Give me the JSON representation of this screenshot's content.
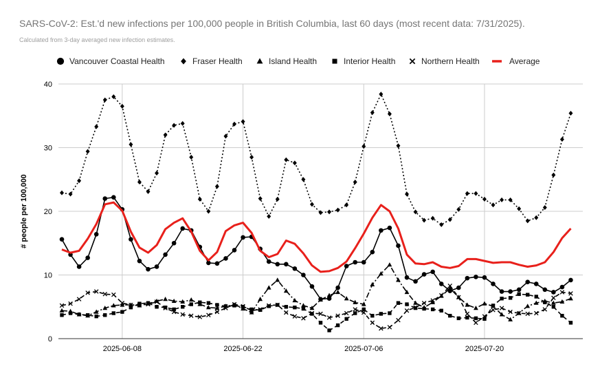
{
  "title": "SARS-CoV-2: Est.'d new infections per 100,000 people in British Columbia, last 60 days (most recent data: 7/31/2025).",
  "subtitle": "Calculated from 3-day averaged new infection estimates.",
  "chart_data": {
    "type": "line",
    "title": "SARS-CoV-2: Est.'d new infections per 100,000 people in British Columbia, last 60 days (most recent data: 7/31/2025).",
    "subtitle": "Calculated from 3-day averaged new infection estimates.",
    "xlabel": "",
    "ylabel": "# people per 100,000",
    "ylim": [
      0,
      40
    ],
    "yticks": [
      "0",
      "10",
      "20",
      "30",
      "40"
    ],
    "x_start": "2025-06-01",
    "x_end": "2025-07-31",
    "xticks": [
      "2025-06-08",
      "2025-06-22",
      "2025-07-06",
      "2025-07-20"
    ],
    "legend_position": "top",
    "grid": true,
    "series": [
      {
        "name": "Vancouver Coastal Health",
        "color": "#000000",
        "line": "solid",
        "marker": "circle",
        "values": [
          15.6,
          13.2,
          11.3,
          12.7,
          16.4,
          22.0,
          22.2,
          20.3,
          15.6,
          12.2,
          10.9,
          11.3,
          13.2,
          15.0,
          17.3,
          17.0,
          14.4,
          11.9,
          11.8,
          12.6,
          13.9,
          15.9,
          16.0,
          14.1,
          12.1,
          11.7,
          11.7,
          11.0,
          10.0,
          8.2,
          6.2,
          6.3,
          8.0,
          11.4,
          12.0,
          12.0,
          13.6,
          17.0,
          17.4,
          14.6,
          9.6,
          9.0,
          10.1,
          10.5,
          8.6,
          7.5,
          8.0,
          9.5,
          9.7,
          9.6,
          8.6,
          7.4,
          7.4,
          7.7,
          8.9,
          8.6,
          7.7,
          7.3,
          8.1,
          9.2
        ]
      },
      {
        "name": "Fraser Health",
        "color": "#000000",
        "line": "dotted",
        "marker": "diamond",
        "values": [
          22.9,
          22.7,
          24.8,
          29.4,
          33.3,
          37.5,
          38.0,
          36.5,
          30.5,
          24.6,
          23.1,
          26.0,
          32.0,
          33.5,
          33.8,
          28.5,
          21.9,
          20.0,
          23.9,
          31.8,
          33.7,
          34.1,
          28.5,
          22.0,
          19.2,
          21.9,
          28.1,
          27.6,
          25.0,
          21.1,
          19.8,
          19.9,
          20.2,
          21.0,
          24.6,
          30.2,
          35.5,
          38.4,
          35.3,
          30.3,
          22.7,
          19.9,
          18.6,
          18.9,
          17.9,
          18.7,
          20.3,
          22.8,
          22.8,
          21.9,
          21.0,
          21.8,
          21.8,
          20.4,
          18.5,
          19.0,
          20.6,
          25.7,
          31.3,
          35.4
        ]
      },
      {
        "name": "Island Health",
        "color": "#000000",
        "line": "dashdot",
        "marker": "triangle",
        "values": [
          4.4,
          4.3,
          3.8,
          3.6,
          4.2,
          4.8,
          5.2,
          5.3,
          5.3,
          5.2,
          5.5,
          5.9,
          6.2,
          5.9,
          5.8,
          6.1,
          5.4,
          4.9,
          4.8,
          5.1,
          5.3,
          4.7,
          4.1,
          6.2,
          8.0,
          9.2,
          7.5,
          6.0,
          5.2,
          4.8,
          6.1,
          6.8,
          7.3,
          6.3,
          5.7,
          5.4,
          8.5,
          10.2,
          11.6,
          9.2,
          7.3,
          5.6,
          4.9,
          5.7,
          6.7,
          7.9,
          6.5,
          5.3,
          4.8,
          5.5,
          5.1,
          3.8,
          3.0,
          4.0,
          5.1,
          5.6,
          5.9,
          5.6,
          5.8,
          6.3
        ]
      },
      {
        "name": "Interior Health",
        "color": "#000000",
        "line": "dashed",
        "marker": "square",
        "values": [
          3.7,
          4.0,
          3.8,
          3.7,
          3.5,
          3.7,
          4.0,
          4.2,
          4.9,
          5.5,
          5.6,
          5.0,
          4.9,
          4.6,
          5.0,
          5.4,
          5.7,
          5.6,
          5.3,
          5.1,
          5.2,
          5.0,
          4.6,
          4.5,
          5.1,
          5.3,
          5.0,
          4.9,
          4.7,
          3.9,
          2.5,
          1.3,
          2.1,
          3.1,
          4.0,
          4.6,
          3.6,
          3.9,
          4.0,
          5.6,
          5.4,
          4.8,
          4.7,
          4.6,
          4.4,
          3.6,
          3.2,
          3.3,
          3.2,
          3.1,
          5.2,
          6.3,
          6.4,
          7.0,
          6.9,
          6.6,
          5.7,
          5.0,
          3.6,
          2.5
        ]
      },
      {
        "name": "Northern Health",
        "color": "#000000",
        "line": "dashed",
        "marker": "x",
        "values": [
          5.2,
          5.5,
          6.2,
          7.2,
          7.4,
          7.0,
          6.9,
          5.6,
          5.3,
          5.3,
          5.4,
          5.8,
          4.8,
          4.2,
          3.8,
          3.6,
          3.4,
          3.7,
          4.2,
          4.8,
          5.4,
          5.1,
          4.4,
          4.6,
          5.2,
          5.3,
          4.1,
          3.5,
          3.2,
          4.0,
          3.9,
          3.3,
          3.6,
          4.0,
          4.6,
          4.1,
          2.5,
          1.6,
          1.8,
          2.9,
          4.4,
          4.9,
          5.6,
          6.0,
          6.8,
          8.3,
          6.5,
          3.9,
          2.5,
          3.5,
          4.5,
          4.8,
          4.2,
          4.0,
          3.9,
          4.0,
          4.6,
          6.4,
          7.3,
          7.1
        ]
      },
      {
        "name": "Average",
        "color": "#e8201b",
        "line": "thick",
        "marker": "none",
        "values": [
          14.0,
          13.5,
          13.8,
          15.7,
          18.0,
          21.1,
          21.4,
          20.1,
          16.8,
          14.3,
          13.5,
          14.7,
          17.2,
          18.2,
          18.9,
          16.8,
          13.8,
          12.3,
          13.6,
          16.9,
          17.8,
          18.2,
          16.6,
          13.8,
          12.8,
          13.3,
          15.4,
          14.9,
          13.4,
          11.5,
          10.5,
          10.6,
          11.1,
          12.1,
          14.2,
          16.5,
          19.0,
          21.0,
          20.0,
          17.3,
          13.2,
          11.8,
          11.7,
          12.0,
          11.3,
          11.1,
          11.4,
          12.5,
          12.5,
          12.2,
          11.9,
          12.0,
          12.0,
          11.6,
          11.3,
          11.5,
          12.0,
          13.6,
          15.8,
          17.3
        ]
      }
    ]
  }
}
